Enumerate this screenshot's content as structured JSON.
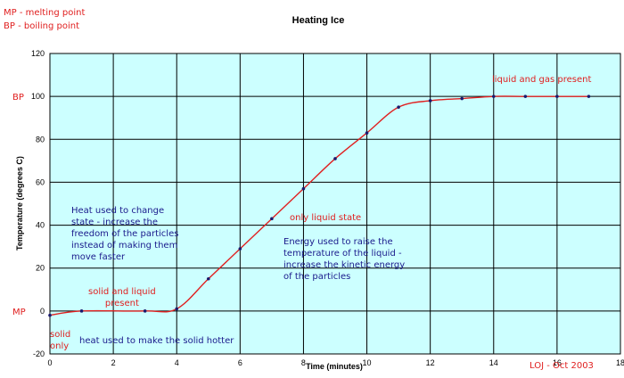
{
  "chart_data": {
    "type": "line",
    "title": "Heating Ice",
    "xlabel": "Time  (minutes)",
    "ylabel": "Temperature (degrees C)",
    "xlim": [
      0,
      18
    ],
    "ylim": [
      -20,
      120
    ],
    "x_ticks": [
      0,
      2,
      4,
      6,
      8,
      10,
      12,
      14,
      16,
      18
    ],
    "y_ticks": [
      -20,
      0,
      20,
      40,
      60,
      80,
      100,
      120
    ],
    "grid": true,
    "legend": "none",
    "series": [
      {
        "points": [
          {
            "x": 0,
            "y": -2
          },
          {
            "x": 1,
            "y": 0
          },
          {
            "x": 3,
            "y": 0
          },
          {
            "x": 4,
            "y": 1
          },
          {
            "x": 5,
            "y": 15
          },
          {
            "x": 6,
            "y": 29
          },
          {
            "x": 7,
            "y": 43
          },
          {
            "x": 8,
            "y": 57
          },
          {
            "x": 9,
            "y": 71
          },
          {
            "x": 10,
            "y": 83
          },
          {
            "x": 11,
            "y": 95
          },
          {
            "x": 12,
            "y": 98
          },
          {
            "x": 13,
            "y": 99
          },
          {
            "x": 14,
            "y": 100
          },
          {
            "x": 15,
            "y": 100
          },
          {
            "x": 16,
            "y": 100
          },
          {
            "x": 17,
            "y": 100
          }
        ]
      }
    ],
    "marker_labels": {
      "mp": "MP",
      "bp": "BP"
    },
    "annotations": {
      "legend_mp": "MP - melting point",
      "legend_bp": "BP - boiling point",
      "solid_liquid": [
        "solid and liquid",
        "present"
      ],
      "solid_only": [
        "solid",
        "only"
      ],
      "heat_solid": "heat used to make the solid hotter",
      "heat_state": [
        "Heat used to change",
        "state - increase the",
        "freedom of the particles",
        "instead of making them",
        "move faster"
      ],
      "only_liquid": "only liquid state",
      "energy_liquid": [
        "Energy used to raise the",
        "temperature of the liquid -",
        "increase the kinetic energy",
        "of the particles"
      ],
      "liquid_gas": "liquid and gas present",
      "credit": "LOJ - Oct 2003"
    },
    "colors": {
      "plot_bg": "#ccffff",
      "grid": "#000000",
      "line": "#e02020",
      "marker": "#1a1a6e",
      "red_text": "#e02020",
      "blue_text": "#1a1a8c"
    }
  }
}
